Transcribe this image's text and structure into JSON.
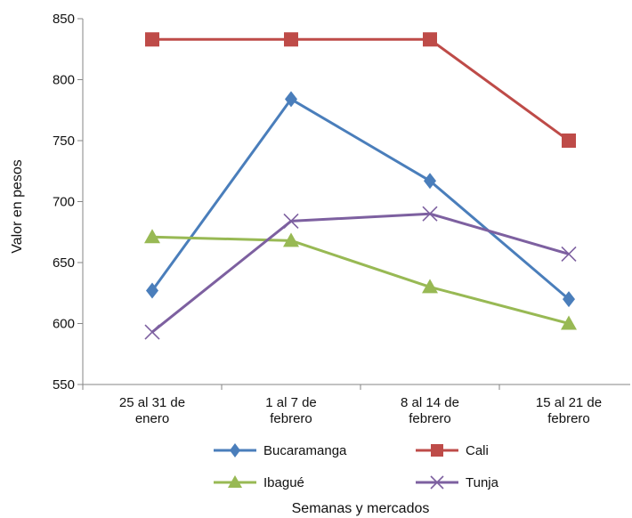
{
  "chart_data": {
    "type": "line",
    "categories": [
      [
        "25 al 31 de",
        "enero"
      ],
      [
        "1 al 7 de",
        "febrero"
      ],
      [
        "8 al 14 de",
        "febrero"
      ],
      [
        "15 al 21 de",
        "febrero"
      ]
    ],
    "ylabel": "Valor en pesos",
    "xlabel": "Semanas y mercados",
    "ylim": [
      550,
      850
    ],
    "yticks": [
      550,
      600,
      650,
      700,
      750,
      800,
      850
    ],
    "grid": false,
    "legend_position": "bottom",
    "series": [
      {
        "name": "Bucaramanga",
        "color": "#4a7ebb",
        "marker": "diamond",
        "values": [
          627,
          784,
          717,
          620
        ]
      },
      {
        "name": "Cali",
        "color": "#be4b48",
        "marker": "square",
        "values": [
          833,
          833,
          833,
          750
        ]
      },
      {
        "name": "Ibagué",
        "color": "#98b954",
        "marker": "triangle",
        "values": [
          671,
          668,
          630,
          600
        ]
      },
      {
        "name": "Tunja",
        "color": "#7d60a0",
        "marker": "x",
        "values": [
          593,
          684,
          690,
          657
        ]
      }
    ]
  }
}
